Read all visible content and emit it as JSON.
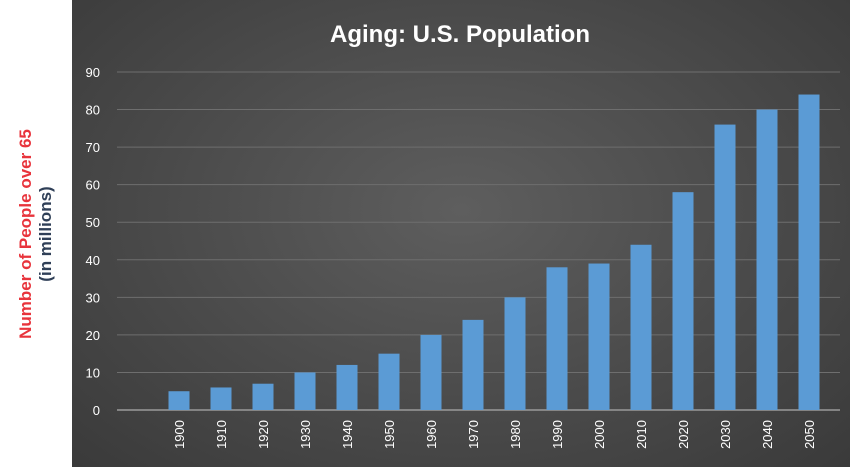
{
  "chart_data": {
    "type": "bar",
    "title": "Aging: U.S. Population",
    "ylabel_line1": "Number of People over 65",
    "ylabel_line2": "(in millions)",
    "xlabel": "",
    "ylim": [
      0,
      90
    ],
    "yticks": [
      0,
      10,
      20,
      30,
      40,
      50,
      60,
      70,
      80,
      90
    ],
    "categories": [
      "1900",
      "1910",
      "1920",
      "1930",
      "1940",
      "1950",
      "1960",
      "1970",
      "1980",
      "1990",
      "2000",
      "2010",
      "2020",
      "2030",
      "2040",
      "2050"
    ],
    "values": [
      5,
      6,
      7,
      10,
      12,
      15,
      20,
      24,
      30,
      38,
      39,
      44,
      58,
      76,
      80,
      84
    ],
    "grid": true,
    "legend": "none",
    "colors": {
      "bar": "#5b9bd5",
      "background": "#4a4a4a",
      "text": "#ffffff",
      "gridline": "#6e6e6e",
      "ylabel_line1": "#e8343c",
      "ylabel_line2": "#2f3f57"
    }
  }
}
